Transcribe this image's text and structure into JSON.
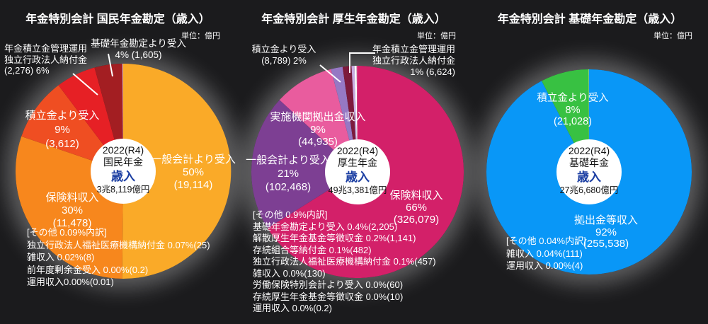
{
  "charts": [
    {
      "title": "年金特別会計 国民年金勘定（歳入）",
      "unit_label": "単位：億円",
      "center": {
        "year": "2022(R4)",
        "account": "国民年金",
        "flow": "歳入",
        "total": "3兆8,119億円"
      },
      "labels": {
        "npf": "年金積立金管理運用\n独立行政法人納付金\n(2,276) 6%",
        "basic": "基礎年金勘定より受入\n4% (1,605)",
        "reserve": "積立金より受入\n9%\n(3,612)",
        "general": "一般会計より受入\n50%\n(19,114)",
        "premium": "保険料収入\n30%\n(11,478)"
      },
      "notes": "[その他 0.09%内訳]\n独立行政法人福祉医療機構納付金 0.07%(25)\n雑収入 0.02%(8)\n前年度剰余金受入 0.00%(0.2)\n運用収入0.00%(0.01)"
    },
    {
      "title": "年金特別会計 厚生年金勘定（歳入）",
      "unit_label": "単位：億円",
      "center": {
        "year": "2022(R4)",
        "account": "厚生年金",
        "flow": "歳入",
        "total": "49兆3,381億円"
      },
      "labels": {
        "tsumitate": "積立金より受入\n(8,789) 2%",
        "gpif": "年金積立金管理運用\n独立行政法人納付金\n1% (6,624)",
        "jisshi": "実施機関拠出金収入\n9%\n(44,935)",
        "ippan": "一般会計より受入\n21%\n(102,468)",
        "hoken": "保険料収入\n66%\n(326,079)"
      },
      "notes": "[その他 0.9%内訳]\n基礎年金勘定より受入 0.4%(2,205)\n解散厚生年金基金等徴収金 0.2%(1,141)\n存続組合等納付金 0.1%(482)\n独立行政法人福祉医療機構納付金 0.1%(457)\n雑収入 0.0%(130)\n労働保険特別会計より受入 0.0%(60)\n存続厚生年金基金等徴収金 0.0%(10)\n運用収入 0.0%(0.2)"
    },
    {
      "title": "年金特別会計 基礎年金勘定（歳入）",
      "unit_label": "単位：億円",
      "center": {
        "year": "2022(R4)",
        "account": "基礎年金",
        "flow": "歳入",
        "total": "27兆6,680億円"
      },
      "labels": {
        "reserve": "積立金より受入\n8%\n(21,028)",
        "kyoshutsu": "拠出金等収入\n92%\n(255,538)"
      },
      "notes": "[その他 0.04%内訳]\n雑収入 0.04%(111)\n運用収入 0.00%(4)"
    }
  ],
  "chart_data": [
    {
      "type": "pie",
      "title": "年金特別会計 国民年金勘定（歳入）",
      "unit": "億円",
      "year": "2022(R4)",
      "total_label": "3兆8,119億円",
      "total_value": 38119,
      "slices": [
        {
          "label": "一般会計より受入",
          "pct": "50%",
          "value": 19114,
          "color": "#faaa28"
        },
        {
          "label": "保険料収入",
          "pct": "30%",
          "value": 11478,
          "color": "#f7871d"
        },
        {
          "label": "積立金より受入",
          "pct": "9%",
          "value": 3612,
          "color": "#ef4e22"
        },
        {
          "label": "年金積立金管理運用独立行政法人納付金",
          "pct": "6%",
          "value": 2276,
          "color": "#e62025"
        },
        {
          "label": "基礎年金勘定より受入",
          "pct": "4%",
          "value": 1605,
          "color": "#a31e22"
        },
        {
          "label": "その他",
          "pct": "0.09%",
          "value": 33,
          "color": "#ffffff"
        }
      ],
      "other_breakdown": [
        {
          "label": "独立行政法人福祉医療機構納付金",
          "pct": "0.07%",
          "value": 25
        },
        {
          "label": "雑収入",
          "pct": "0.02%",
          "value": 8
        },
        {
          "label": "前年度剰余金受入",
          "pct": "0.00%",
          "value": 0.2
        },
        {
          "label": "運用収入",
          "pct": "0.00%",
          "value": 0.01
        }
      ]
    },
    {
      "type": "pie",
      "title": "年金特別会計 厚生年金勘定（歳入）",
      "unit": "億円",
      "year": "2022(R4)",
      "total_label": "49兆3,381億円",
      "total_value": 493381,
      "slices": [
        {
          "label": "保険料収入",
          "pct": "66%",
          "value": 326079,
          "color": "#d32069"
        },
        {
          "label": "一般会計より受入",
          "pct": "21%",
          "value": 102468,
          "color": "#7d3f93"
        },
        {
          "label": "実施機関拠出金収入",
          "pct": "9%",
          "value": 44935,
          "color": "#e95c9e"
        },
        {
          "label": "積立金より受入",
          "pct": "2%",
          "value": 8789,
          "color": "#9678c4"
        },
        {
          "label": "年金積立金管理運用独立行政法人納付金",
          "pct": "1%",
          "value": 6624,
          "color": "#7d1a3c"
        },
        {
          "label": "その他",
          "pct": "0.9%",
          "value": 4485,
          "color": "#c9abe2",
          "sub": [
            {
              "value": 2205,
              "color": "#c9abe2"
            },
            {
              "value": 1623,
              "color": "#ffffff"
            },
            {
              "value": 657,
              "color": "#d84a8f"
            }
          ]
        }
      ],
      "other_breakdown": [
        {
          "label": "基礎年金勘定より受入",
          "pct": "0.4%",
          "value": 2205
        },
        {
          "label": "解散厚生年金基金等徴収金",
          "pct": "0.2%",
          "value": 1141
        },
        {
          "label": "存続組合等納付金",
          "pct": "0.1%",
          "value": 482
        },
        {
          "label": "独立行政法人福祉医療機構納付金",
          "pct": "0.1%",
          "value": 457
        },
        {
          "label": "雑収入",
          "pct": "0.0%",
          "value": 130
        },
        {
          "label": "労働保険特別会計より受入",
          "pct": "0.0%",
          "value": 60
        },
        {
          "label": "存続厚生年金基金等徴収金",
          "pct": "0.0%",
          "value": 10
        },
        {
          "label": "運用収入",
          "pct": "0.0%",
          "value": 0.2
        }
      ]
    },
    {
      "type": "pie",
      "title": "年金特別会計 基礎年金勘定（歳入）",
      "unit": "億円",
      "year": "2022(R4)",
      "total_label": "27兆6,680億円",
      "total_value": 276680,
      "slices": [
        {
          "label": "拠出金等収入",
          "pct": "92%",
          "value": 255538,
          "color": "#0997f7"
        },
        {
          "label": "積立金より受入",
          "pct": "8%",
          "value": 21028,
          "color": "#38c142"
        },
        {
          "label": "その他",
          "pct": "0.04%",
          "value": 115,
          "color": "#ffffff"
        }
      ],
      "other_breakdown": [
        {
          "label": "雑収入",
          "pct": "0.04%",
          "value": 111
        },
        {
          "label": "運用収入",
          "pct": "0.00%",
          "value": 4
        }
      ]
    }
  ]
}
